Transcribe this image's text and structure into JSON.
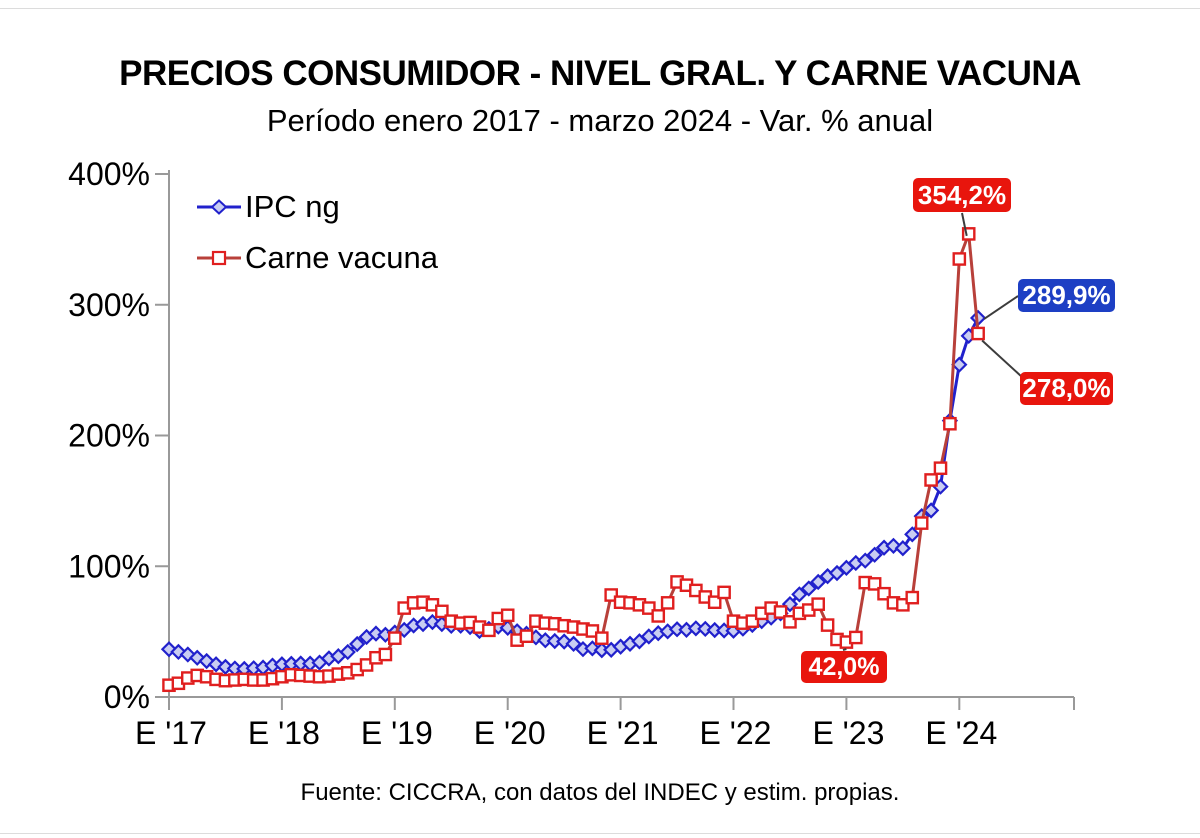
{
  "chart": {
    "title": "PRECIOS CONSUMIDOR - NIVEL GRAL. Y CARNE VACUNA",
    "subtitle": "Período enero 2017 - marzo 2024 - Var. % anual",
    "source": "Fuente: CICCRA, con datos del INDEC y estim. propias.",
    "colors": {
      "ipc_line": "#2121cc",
      "ipc_marker_fill": "#c9cdf2",
      "carne_line": "#b8403a",
      "carne_marker_stroke": "#e01f1f",
      "carne_marker_fill": "#ffffff",
      "axis": "#999999",
      "annotation_red_bg": "#e8150d",
      "annotation_blue_bg": "#1d3fc4",
      "leader_line": "#3c3c3c"
    }
  },
  "chart_data": {
    "type": "line",
    "title": "PRECIOS CONSUMIDOR - NIVEL GRAL. Y CARNE VACUNA",
    "subtitle": "Período enero 2017 - marzo 2024 - Var. % anual",
    "x_start": "enero 2017",
    "x_end": "marzo 2024",
    "x_tick_labels": [
      "E '17",
      "E '18",
      "E '19",
      "E '20",
      "E '21",
      "E '22",
      "E '23",
      "E '24"
    ],
    "y_tick_values": [
      0,
      100,
      200,
      300,
      400
    ],
    "y_tick_labels": [
      "0%",
      "100%",
      "200%",
      "300%",
      "400%"
    ],
    "ylim": [
      0,
      400
    ],
    "grid": false,
    "legend_position": "top-left-inside",
    "series": [
      {
        "name": "IPC ng",
        "marker": "diamond",
        "color": "#2121cc",
        "values": [
          36.5,
          34.5,
          32.5,
          30,
          27.5,
          25,
          23,
          21.8,
          21.5,
          22,
          22.5,
          24,
          25,
          25.4,
          25.6,
          25.5,
          26.3,
          29.5,
          31.2,
          34.4,
          40.5,
          45.9,
          48.5,
          47.6,
          49.3,
          51.3,
          54.7,
          55.8,
          57.3,
          55.8,
          54.4,
          54.5,
          53.5,
          50.5,
          52.1,
          53.8,
          52.9,
          50.3,
          48.4,
          45.6,
          43.4,
          42.8,
          42.4,
          40.7,
          36.6,
          37.2,
          35.8,
          36.1,
          38.5,
          40.7,
          42.6,
          46.3,
          48.8,
          50.2,
          51.8,
          51.4,
          52.5,
          52.1,
          51.2,
          50.9,
          50.7,
          52.3,
          55.1,
          58,
          60.7,
          64,
          71,
          78.5,
          83,
          88,
          92.4,
          94.8,
          98.8,
          102.5,
          104.3,
          108.8,
          114.2,
          115.6,
          113.8,
          124.4,
          138.3,
          142.7,
          160.9,
          211.4,
          254.2,
          276.2,
          289.9
        ]
      },
      {
        "name": "Carne vacuna",
        "marker": "square",
        "color": "#b8403a",
        "values": [
          9,
          10.5,
          14.5,
          16.5,
          15.5,
          13.5,
          12.5,
          13,
          13.5,
          13,
          13,
          14,
          15.5,
          17,
          16.5,
          16,
          15.5,
          16,
          17.5,
          18.5,
          21,
          24.5,
          30,
          32.5,
          45,
          68,
          72,
          72.5,
          70.5,
          65.5,
          58,
          56.5,
          57,
          53.5,
          51,
          60,
          62.5,
          43.5,
          46.5,
          58,
          56.5,
          56,
          54.5,
          53.5,
          52,
          50.5,
          45,
          78,
          72.5,
          72,
          70.5,
          68,
          62,
          72,
          88,
          85.5,
          81.5,
          76.5,
          72.5,
          80,
          58,
          56.5,
          58,
          64,
          68,
          65,
          57.5,
          64,
          66.5,
          71,
          55,
          44,
          42,
          45.5,
          87.5,
          86.5,
          79,
          72,
          70.5,
          76,
          133,
          166,
          175,
          209,
          335,
          354.2,
          278
        ]
      }
    ],
    "annotations": [
      {
        "text": "354,2%",
        "series": "Carne vacuna",
        "month_index": 85,
        "bg": "#e8150d"
      },
      {
        "text": "289,9%",
        "series": "IPC ng",
        "month_index": 86,
        "bg": "#1d3fc4"
      },
      {
        "text": "278,0%",
        "series": "Carne vacuna",
        "month_index": 86,
        "bg": "#e8150d"
      },
      {
        "text": "42,0%",
        "series": "Carne vacuna",
        "month_index": 72,
        "bg": "#e8150d"
      }
    ]
  }
}
